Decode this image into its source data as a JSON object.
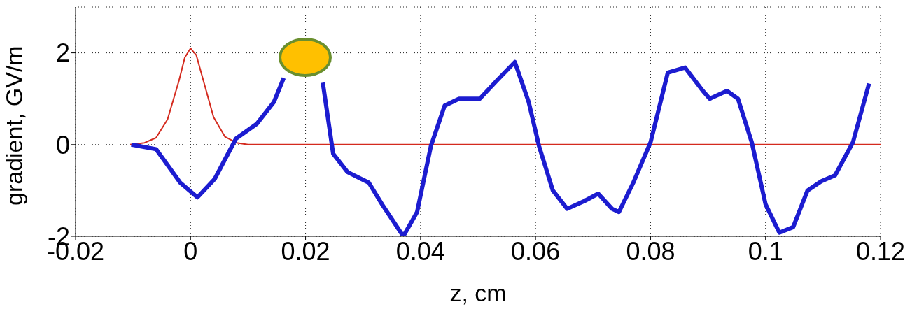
{
  "chart_data": {
    "type": "line",
    "xlabel": "z, cm",
    "ylabel": "gradient, GV/m",
    "xlim": [
      -0.02,
      0.12
    ],
    "xticks": [
      -0.02,
      0,
      0.02,
      0.04,
      0.06,
      0.08,
      0.1,
      0.12
    ],
    "ylim": [
      -2,
      3
    ],
    "yticks": [
      -2,
      0,
      2
    ],
    "grid": true,
    "marker": "none",
    "line_style": "solid",
    "series": [
      {
        "color": "#d42a1e",
        "x": [
          -0.0105,
          -0.008,
          -0.006,
          -0.004,
          -0.002,
          -0.001,
          0,
          0.001,
          0.002,
          0.004,
          0.006,
          0.008,
          0.01,
          0.12
        ],
        "values": [
          0,
          0.04,
          0.15,
          0.55,
          1.4,
          1.9,
          2.1,
          1.95,
          1.5,
          0.6,
          0.17,
          0.04,
          0,
          0
        ]
      },
      {
        "color": "#1c1cd0",
        "x": [
          -0.0103,
          -0.006,
          -0.0018,
          0.0012,
          0.0042,
          0.0079,
          0.0115,
          0.0145,
          0.0162,
          0.0176,
          0.02,
          0.0224,
          0.023,
          0.0248,
          0.0273,
          0.031,
          0.0333,
          0.037,
          0.0394,
          0.0418,
          0.0442,
          0.0467,
          0.0503,
          0.0533,
          0.0564,
          0.0588,
          0.0606,
          0.063,
          0.0655,
          0.0685,
          0.0709,
          0.0733,
          0.0745,
          0.077,
          0.08,
          0.083,
          0.086,
          0.0891,
          0.0903,
          0.0933,
          0.0952,
          0.0976,
          0.1,
          0.1024,
          0.1048,
          0.1073,
          0.1097,
          0.1121,
          0.1152,
          0.118
        ],
        "values": [
          0,
          -0.1,
          -0.83,
          -1.15,
          -0.75,
          0.13,
          0.45,
          0.93,
          1.45,
          null,
          null,
          null,
          1.35,
          -0.2,
          -0.6,
          -0.83,
          -1.3,
          -2.0,
          -1.47,
          -0.03,
          0.85,
          1.0,
          1.0,
          1.4,
          1.8,
          0.93,
          -0.03,
          -1.0,
          -1.4,
          -1.23,
          -1.07,
          -1.4,
          -1.47,
          -0.83,
          0.05,
          1.57,
          1.68,
          1.17,
          1.0,
          1.17,
          1.0,
          0.05,
          -1.3,
          -1.92,
          -1.8,
          -1.0,
          -0.8,
          -0.67,
          0.05,
          1.33
        ]
      }
    ]
  }
}
